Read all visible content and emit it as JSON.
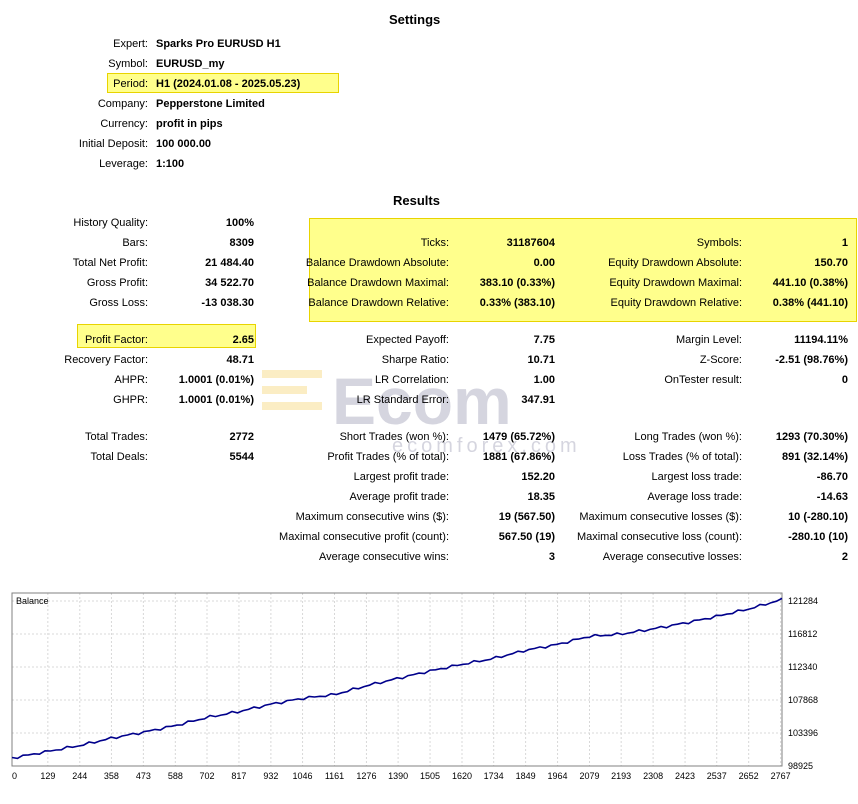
{
  "settings": {
    "title": "Settings",
    "rows": [
      {
        "label": "Expert:",
        "value": "Sparks Pro EURUSD H1"
      },
      {
        "label": "Symbol:",
        "value": "EURUSD_my"
      },
      {
        "label": "Period:",
        "value": "H1 (2024.01.08 - 2025.05.23)"
      },
      {
        "label": "Company:",
        "value": "Pepperstone Limited"
      },
      {
        "label": "Currency:",
        "value": "profit in pips"
      },
      {
        "label": "Initial Deposit:",
        "value": "100 000.00"
      },
      {
        "label": "Leverage:",
        "value": "1:100"
      }
    ]
  },
  "results": {
    "title": "Results",
    "col1": [
      {
        "label": "History Quality:",
        "value": "100%"
      },
      {
        "label": "Bars:",
        "value": "8309"
      },
      {
        "label": "Total Net Profit:",
        "value": "21 484.40"
      },
      {
        "label": "Gross Profit:",
        "value": "34 522.70"
      },
      {
        "label": "Gross Loss:",
        "value": "-13 038.30"
      },
      {
        "label": "Profit Factor:",
        "value": "2.65"
      },
      {
        "label": "Recovery Factor:",
        "value": "48.71"
      },
      {
        "label": "AHPR:",
        "value": "1.0001 (0.01%)"
      },
      {
        "label": "GHPR:",
        "value": "1.0001 (0.01%)"
      },
      {
        "label": "Total Trades:",
        "value": "2772"
      },
      {
        "label": "Total Deals:",
        "value": "5544"
      }
    ],
    "col2": [
      {
        "label": "Ticks:",
        "value": "31187604"
      },
      {
        "label": "Balance Drawdown Absolute:",
        "value": "0.00"
      },
      {
        "label": "Balance Drawdown Maximal:",
        "value": "383.10 (0.33%)"
      },
      {
        "label": "Balance Drawdown Relative:",
        "value": "0.33% (383.10)"
      },
      {
        "label": "Expected Payoff:",
        "value": "7.75"
      },
      {
        "label": "Sharpe Ratio:",
        "value": "10.71"
      },
      {
        "label": "LR Correlation:",
        "value": "1.00"
      },
      {
        "label": "LR Standard Error:",
        "value": "347.91"
      },
      {
        "label": "Short Trades (won %):",
        "value": "1479 (65.72%)"
      },
      {
        "label": "Profit Trades (% of total):",
        "value": "1881 (67.86%)"
      },
      {
        "label": "Largest profit trade:",
        "value": "152.20"
      },
      {
        "label": "Average profit trade:",
        "value": "18.35"
      },
      {
        "label": "Maximum consecutive wins ($):",
        "value": "19 (567.50)"
      },
      {
        "label": "Maximal consecutive profit (count):",
        "value": "567.50 (19)"
      },
      {
        "label": "Average consecutive wins:",
        "value": "3"
      }
    ],
    "col3": [
      {
        "label": "Symbols:",
        "value": "1"
      },
      {
        "label": "Equity Drawdown Absolute:",
        "value": "150.70"
      },
      {
        "label": "Equity Drawdown Maximal:",
        "value": "441.10 (0.38%)"
      },
      {
        "label": "Equity Drawdown Relative:",
        "value": "0.38% (441.10)"
      },
      {
        "label": "Margin Level:",
        "value": "11194.11%"
      },
      {
        "label": "Z-Score:",
        "value": "-2.51 (98.76%)"
      },
      {
        "label": "OnTester result:",
        "value": "0"
      },
      {
        "label": "Long Trades (won %):",
        "value": "1293 (70.30%)"
      },
      {
        "label": "Loss Trades (% of total):",
        "value": "891 (32.14%)"
      },
      {
        "label": "Largest loss trade:",
        "value": "-86.70"
      },
      {
        "label": "Average loss trade:",
        "value": "-14.63"
      },
      {
        "label": "Maximum consecutive losses ($):",
        "value": "10 (-280.10)"
      },
      {
        "label": "Maximal consecutive loss (count):",
        "value": "-280.10 (10)"
      },
      {
        "label": "Average consecutive losses:",
        "value": "2"
      }
    ]
  },
  "watermark": {
    "brand": "Ecom",
    "domain": "ecomforex.com",
    "color": "#6b6b8e",
    "accent": "#f2c230"
  },
  "highlight_color": "#ffff8c",
  "chart_data": {
    "type": "line",
    "title": "",
    "legend": "Balance",
    "line_color": "#00008b",
    "x_ticks": [
      0,
      129,
      244,
      358,
      473,
      588,
      702,
      817,
      932,
      1046,
      1161,
      1276,
      1390,
      1505,
      1620,
      1734,
      1849,
      1964,
      2079,
      2193,
      2308,
      2423,
      2537,
      2652,
      2767
    ],
    "y_ticks": [
      98925,
      103396,
      107868,
      112340,
      116812,
      121284
    ],
    "xlim": [
      0,
      2772
    ],
    "ylim": [
      98925,
      121284
    ],
    "series": [
      {
        "name": "Balance",
        "x": [
          0,
          129,
          244,
          358,
          473,
          588,
          702,
          817,
          932,
          1046,
          1161,
          1276,
          1390,
          1505,
          1620,
          1734,
          1849,
          1964,
          2079,
          2193,
          2308,
          2423,
          2537,
          2652,
          2772
        ],
        "y": [
          100000,
          100900,
          101700,
          102700,
          103500,
          104400,
          105500,
          106300,
          107300,
          108100,
          108600,
          109800,
          110800,
          111800,
          112700,
          113500,
          114600,
          115400,
          116500,
          116800,
          117500,
          118300,
          119200,
          120200,
          121484
        ]
      }
    ]
  }
}
